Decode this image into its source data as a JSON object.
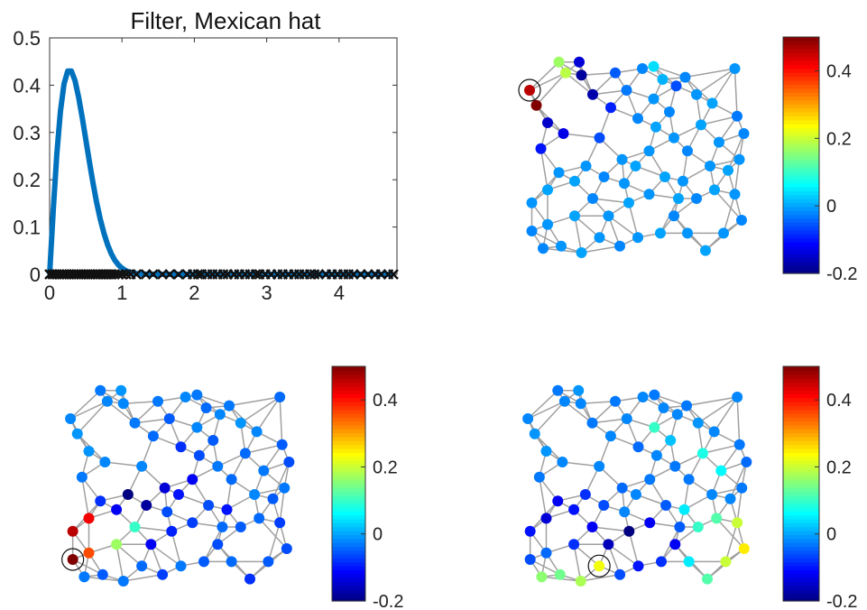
{
  "chart_data": [
    {
      "type": "line",
      "title": "Filter, Mexican hat",
      "xlim": [
        0,
        4.8
      ],
      "ylim": [
        0,
        0.5
      ],
      "xticks": [
        "0",
        "1",
        "2",
        "3",
        "4"
      ],
      "yticks": [
        "0",
        "0.1",
        "0.2",
        "0.3",
        "0.4",
        "0.5"
      ],
      "series": [
        {
          "x": [
            0,
            0.05,
            0.1,
            0.15,
            0.2,
            0.25,
            0.3,
            0.35,
            0.4,
            0.45,
            0.5,
            0.55,
            0.6,
            0.65,
            0.7,
            0.75,
            0.8,
            0.85,
            0.9,
            0.95,
            1.0,
            1.05,
            1.1,
            1.15,
            1.2,
            1.3,
            1.5,
            2.0,
            3.0,
            4.0,
            4.75
          ],
          "values": [
            0,
            0.135,
            0.255,
            0.345,
            0.403,
            0.43,
            0.43,
            0.41,
            0.375,
            0.332,
            0.285,
            0.238,
            0.193,
            0.152,
            0.117,
            0.087,
            0.063,
            0.044,
            0.03,
            0.02,
            0.013,
            0.008,
            0.005,
            0.003,
            0.0015,
            0.0005,
            0,
            0,
            0,
            0,
            0
          ],
          "color": "#0072BD"
        }
      ],
      "eigenvalues": [
        0,
        0.04,
        0.07,
        0.1,
        0.13,
        0.17,
        0.2,
        0.24,
        0.27,
        0.3,
        0.33,
        0.37,
        0.4,
        0.44,
        0.47,
        0.5,
        0.53,
        0.57,
        0.6,
        0.63,
        0.66,
        0.7,
        0.74,
        0.78,
        0.82,
        0.86,
        0.9,
        0.95,
        1.0,
        1.06,
        1.12,
        1.2,
        1.33,
        1.43,
        1.56,
        1.66,
        1.78,
        1.9,
        1.98,
        2.05,
        2.1,
        2.18,
        2.25,
        2.32,
        2.4,
        2.46,
        2.55,
        2.62,
        2.7,
        2.77,
        2.85,
        2.9,
        2.98,
        3.06,
        3.15,
        3.22,
        3.3,
        3.38,
        3.45,
        3.52,
        3.6,
        3.66,
        3.72,
        3.82,
        3.9,
        3.98,
        4.06,
        4.13,
        4.2,
        4.3,
        4.4,
        4.5,
        4.58,
        4.68,
        4.75
      ]
    },
    {
      "type": "scatter",
      "subtype": "graph-signal",
      "colorbar": {
        "min": -0.2,
        "max": 0.5,
        "ticks": [
          "-0.2",
          "0",
          "0.2",
          "0.4"
        ],
        "colormap": "jet"
      },
      "circled_node": 0,
      "values": [
        0.46,
        0.5,
        0.17,
        0.19,
        -0.14,
        -0.18,
        -0.17,
        -0.15,
        -0.13,
        -0.1,
        -0.09,
        -0.06,
        -0.05,
        -0.03,
        -0.02,
        0.04,
        0.01,
        -0.06,
        -0.02,
        -0.01,
        0.0,
        -0.01,
        -0.03,
        -0.02,
        -0.01,
        0.0,
        -0.01,
        -0.02,
        -0.01,
        0.0,
        -0.02,
        -0.01,
        0.0,
        -0.01,
        -0.02,
        -0.01,
        0.0,
        -0.01,
        0.0,
        -0.01,
        -0.02,
        -0.01,
        0.0,
        -0.02,
        -0.01,
        0.0,
        -0.01,
        0.0,
        -0.01,
        -0.02,
        0.0,
        -0.01,
        -0.02,
        -0.01,
        0.0,
        -0.01,
        -0.02,
        0.0,
        -0.01,
        -0.02,
        -0.01,
        0.0,
        -0.01,
        -0.02,
        -0.01,
        0.0,
        -0.01,
        -0.02,
        -0.01,
        0.0
      ]
    },
    {
      "type": "scatter",
      "subtype": "graph-signal",
      "colorbar": {
        "min": -0.2,
        "max": 0.5,
        "ticks": [
          "-0.2",
          "0",
          "0.2",
          "0.4"
        ],
        "colormap": "jet"
      },
      "circled_node": 40,
      "values": [
        -0.02,
        -0.01,
        -0.03,
        -0.02,
        -0.01,
        -0.02,
        -0.03,
        -0.01,
        -0.02,
        -0.03,
        -0.04,
        -0.02,
        -0.03,
        -0.05,
        -0.02,
        -0.03,
        -0.04,
        -0.02,
        -0.03,
        -0.01,
        -0.02,
        -0.04,
        -0.05,
        -0.06,
        -0.03,
        -0.05,
        -0.02,
        -0.04,
        -0.03,
        -0.06,
        -0.08,
        -0.12,
        -0.1,
        -0.14,
        -0.18,
        -0.2,
        -0.12,
        -0.08,
        0.42,
        0.46,
        0.5,
        0.36,
        0.17,
        0.1,
        -0.12,
        -0.09,
        -0.07,
        -0.06,
        -0.1,
        -0.05,
        -0.04,
        -0.07,
        -0.06,
        -0.05,
        -0.08,
        -0.04,
        -0.06,
        -0.05,
        -0.03,
        -0.07,
        -0.04,
        -0.03,
        -0.05,
        -0.03,
        -0.02,
        -0.04,
        -0.03,
        -0.05,
        -0.06,
        -0.04
      ]
    },
    {
      "type": "scatter",
      "subtype": "graph-signal",
      "colorbar": {
        "min": -0.2,
        "max": 0.5,
        "ticks": [
          "-0.2",
          "0",
          "0.2",
          "0.4"
        ],
        "colormap": "jet"
      },
      "circled_node": 60,
      "values": [
        -0.02,
        -0.01,
        -0.03,
        -0.02,
        -0.01,
        -0.02,
        -0.03,
        -0.01,
        -0.02,
        -0.03,
        -0.02,
        -0.02,
        -0.03,
        -0.02,
        -0.02,
        -0.03,
        -0.02,
        -0.02,
        -0.03,
        -0.01,
        -0.02,
        -0.02,
        -0.03,
        -0.04,
        -0.03,
        -0.02,
        -0.02,
        -0.03,
        -0.03,
        -0.02,
        -0.04,
        -0.03,
        -0.02,
        -0.04,
        -0.06,
        -0.08,
        -0.1,
        -0.12,
        -0.14,
        -0.1,
        -0.06,
        -0.04,
        -0.08,
        -0.12,
        -0.16,
        -0.2,
        -0.12,
        -0.05,
        0.05,
        0.1,
        0.12,
        0.2,
        0.25,
        0.2,
        0.12,
        0.05,
        -0.12,
        -0.08,
        -0.1,
        -0.06,
        0.23,
        0.18,
        0.14,
        0.16,
        0.1,
        0.08,
        0.06,
        0.02,
        -0.02,
        -0.05
      ]
    }
  ]
}
